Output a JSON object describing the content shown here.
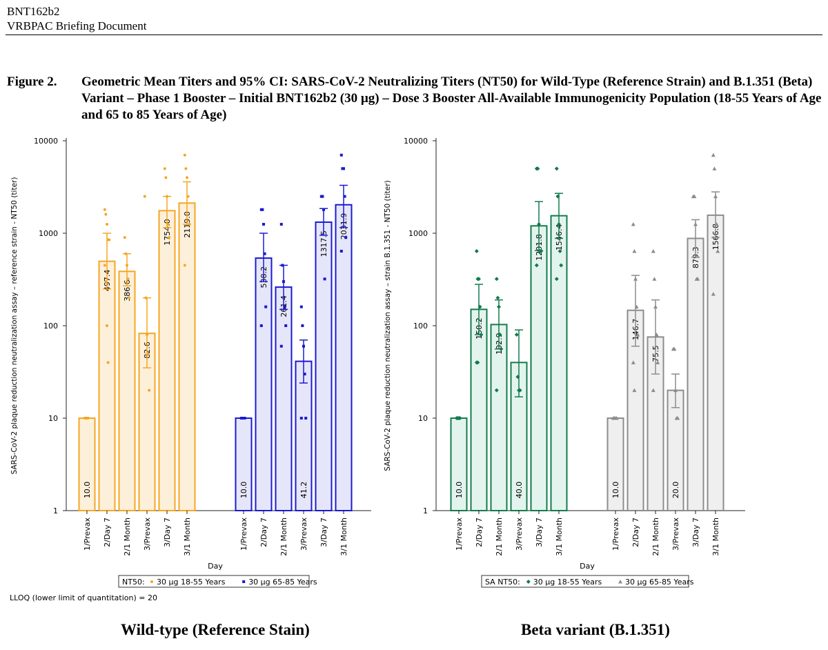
{
  "header": {
    "line1": "BNT162b2",
    "line2": "VRBPAC Briefing Document"
  },
  "figure": {
    "label": "Figure 2.",
    "title": "Geometric Mean Titers and 95% CI: SARS-CoV-2 Neutralizing Titers (NT50) for Wild-Type (Reference Strain) and B.1.351 (Beta) Variant – Phase 1 Booster – Initial BNT162b2 (30 µg) – Dose 3 Booster All-Available Immunogenicity Population (18-55 Years of Age and 65 to 85 Years of Age)"
  },
  "lloq_note": "LLOQ (lower limit of quantitation) = 20",
  "captions": {
    "left": "Wild-type (Reference Stain)",
    "right": "Beta variant (B.1.351)"
  },
  "chart_data": [
    {
      "type": "bar",
      "scale": "log",
      "ylim": [
        1,
        10000
      ],
      "ytick_labels": [
        "1",
        "10",
        "100",
        "1000",
        "10000"
      ],
      "ylabel": "SARS-CoV-2 plaque reduction neutralization assay – reference strain - NT50 (titer)",
      "xlabel": "Day",
      "categories": [
        "1/Prevax",
        "2/Day 7",
        "2/1 Month",
        "3/Prevax",
        "3/Day 7",
        "3/1 Month"
      ],
      "legend_title": "NT50:",
      "series": [
        {
          "name": "30 µg 18-55 Years",
          "marker": "circle",
          "color": "#F5A623",
          "fill": "#FDF0DA",
          "values": [
            10.0,
            497.4,
            386.6,
            82.6,
            1754.0,
            2119.0
          ],
          "value_labels": [
            "10.0",
            "497.4",
            "386.6",
            "82.6",
            "1754.0",
            "2119.0"
          ],
          "ci_low": [
            10,
            250,
            270,
            35,
            1150,
            1250
          ],
          "ci_high": [
            10,
            1000,
            600,
            200,
            2500,
            3600
          ],
          "points": [
            [
              10,
              10,
              10,
              10
            ],
            [
              1800,
              1600,
              1250,
              850,
              850,
              450,
              300,
              100,
              40
            ],
            [
              900,
              600,
              450,
              320,
              200
            ],
            [
              2500,
              200,
              80,
              50,
              20
            ],
            [
              5000,
              4000,
              2500,
              1250,
              900
            ],
            [
              7000,
              5000,
              4000,
              2500,
              1250,
              450
            ]
          ]
        },
        {
          "name": "30 µg 65-85 Years",
          "marker": "square",
          "color": "#1A1AD2",
          "fill": "#E6E6FA",
          "values": [
            10.0,
            538.2,
            261.4,
            41.2,
            1317.5,
            2031.9
          ],
          "value_labels": [
            "10.0",
            "538.2",
            "261.4",
            "41.2",
            "1317.5",
            "2031.9"
          ],
          "ci_low": [
            10,
            300,
            150,
            24,
            950,
            1150
          ],
          "ci_high": [
            10,
            1000,
            450,
            70,
            1850,
            3300
          ],
          "points": [
            [
              10,
              10,
              10,
              10
            ],
            [
              1800,
              1800,
              1250,
              600,
              160,
              100
            ],
            [
              1250,
              450,
              300,
              160,
              100,
              60
            ],
            [
              160,
              100,
              60,
              30,
              10,
              10
            ],
            [
              2500,
              2500,
              1800,
              320
            ],
            [
              7000,
              5000,
              5000,
              2500,
              900,
              640
            ]
          ]
        }
      ]
    },
    {
      "type": "bar",
      "scale": "log",
      "ylim": [
        1,
        10000
      ],
      "ytick_labels": [
        "1",
        "10",
        "100",
        "1000",
        "10000"
      ],
      "ylabel": "SARS-CoV-2 plaque reduction neutralization assay – strain B.1.351 - NT50 (titer)",
      "xlabel": "Day",
      "categories": [
        "1/Prevax",
        "2/Day 7",
        "2/1 Month",
        "3/Prevax",
        "3/Day 7",
        "3/1 Month"
      ],
      "legend_title": "SA NT50:",
      "series": [
        {
          "name": "30 µg 18-55 Years",
          "marker": "diamond",
          "color": "#137B4D",
          "fill": "#E3F4EE",
          "values": [
            10.0,
            150.2,
            102.9,
            40.0,
            1201.8,
            1546.4
          ],
          "value_labels": [
            "10.0",
            "150.2",
            "102.9",
            "40.0",
            "1201.8",
            "1546.4"
          ],
          "ci_low": [
            10,
            80,
            56,
            17,
            650,
            880
          ],
          "ci_high": [
            10,
            280,
            190,
            90,
            2200,
            2700
          ],
          "points": [
            [
              10,
              10,
              10,
              10
            ],
            [
              640,
              320,
              320,
              160,
              80,
              40,
              40
            ],
            [
              320,
              200,
              160,
              80,
              56,
              20
            ],
            [
              80,
              28,
              20,
              20
            ],
            [
              5000,
              5000,
              1250,
              640,
              640,
              450
            ],
            [
              5000,
              2500,
              1250,
              640,
              450,
              320
            ]
          ]
        },
        {
          "name": "30 µg 65-85 Years",
          "marker": "triangle",
          "color": "#8C8C8C",
          "fill": "#EFEFEF",
          "values": [
            10.0,
            146.7,
            75.5,
            20.0,
            879.3,
            1566.8
          ],
          "value_labels": [
            "10.0",
            "146.7",
            "75.5",
            "20.0",
            "879.3",
            "1566.8"
          ],
          "ci_low": [
            10,
            60,
            30,
            13,
            550,
            900
          ],
          "ci_high": [
            10,
            350,
            190,
            30,
            1400,
            2800
          ],
          "points": [
            [
              10,
              10,
              10,
              10
            ],
            [
              1250,
              640,
              320,
              160,
              80,
              40,
              20
            ],
            [
              640,
              320,
              160,
              80,
              40,
              20
            ],
            [
              56,
              56,
              20,
              10,
              10
            ],
            [
              2500,
              2500,
              1250,
              320,
              320
            ],
            [
              7000,
              5000,
              2500,
              1250,
              640,
              220
            ]
          ]
        }
      ]
    }
  ]
}
